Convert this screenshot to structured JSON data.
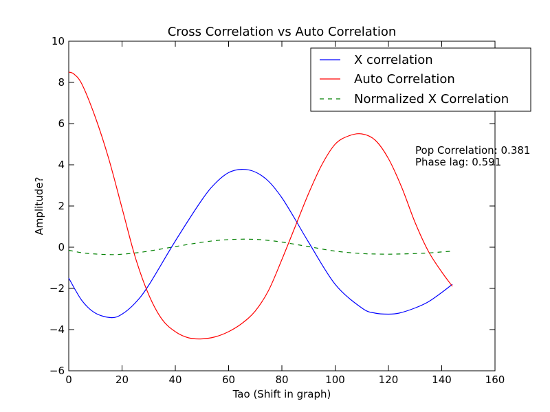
{
  "chart_data": {
    "type": "line",
    "title": "Cross Correlation vs Auto Correlation",
    "xlabel": "Tao (Shift in graph)",
    "ylabel": "Amplitude?",
    "xlim": [
      0,
      160
    ],
    "ylim": [
      -6,
      10
    ],
    "xticks": [
      0,
      20,
      40,
      60,
      80,
      100,
      120,
      140,
      160
    ],
    "yticks": [
      -6,
      -4,
      -2,
      0,
      2,
      4,
      6,
      8,
      10
    ],
    "xtick_labels": [
      "0",
      "20",
      "40",
      "60",
      "80",
      "100",
      "120",
      "140",
      "160"
    ],
    "ytick_labels": [
      "−6",
      "−4",
      "−2",
      "0",
      "2",
      "4",
      "6",
      "8",
      "10"
    ],
    "grid": false,
    "legend_position": "top-right",
    "series": [
      {
        "name": "X correlation",
        "color": "#0000ff",
        "style": "solid",
        "x": [
          0,
          5,
          10,
          16,
          20,
          25,
          30,
          40,
          50,
          55,
          60,
          65,
          70,
          75,
          80,
          85,
          90,
          100,
          110,
          115,
          120,
          124,
          130,
          135,
          140,
          144
        ],
        "y": [
          -1.5,
          -2.6,
          -3.2,
          -3.42,
          -3.25,
          -2.7,
          -1.85,
          0.3,
          2.3,
          3.1,
          3.62,
          3.78,
          3.65,
          3.2,
          2.4,
          1.35,
          0.25,
          -1.8,
          -2.95,
          -3.2,
          -3.25,
          -3.2,
          -2.95,
          -2.65,
          -2.2,
          -1.8
        ]
      },
      {
        "name": "Auto Correlation",
        "color": "#ff0000",
        "style": "solid",
        "x": [
          0,
          2,
          5,
          10,
          15,
          20,
          25,
          30,
          35,
          40,
          45,
          50,
          55,
          60,
          65,
          70,
          75,
          80,
          85,
          90,
          95,
          100,
          105,
          110,
          115,
          120,
          125,
          130,
          135,
          140,
          144
        ],
        "y": [
          8.5,
          8.4,
          7.9,
          6.3,
          4.3,
          1.9,
          -0.5,
          -2.3,
          -3.5,
          -4.1,
          -4.4,
          -4.45,
          -4.35,
          -4.1,
          -3.7,
          -3.1,
          -2.1,
          -0.6,
          1.0,
          2.6,
          4.0,
          5.0,
          5.4,
          5.5,
          5.2,
          4.3,
          2.9,
          1.2,
          -0.2,
          -1.2,
          -1.9
        ]
      },
      {
        "name": "Normalized X Correlation",
        "color": "#008000",
        "style": "dashed",
        "x": [
          0,
          5,
          10,
          16,
          20,
          25,
          30,
          40,
          50,
          55,
          60,
          65,
          70,
          75,
          80,
          85,
          90,
          100,
          110,
          115,
          120,
          124,
          130,
          135,
          140,
          144
        ],
        "y": [
          -0.15,
          -0.27,
          -0.33,
          -0.36,
          -0.34,
          -0.28,
          -0.19,
          0.03,
          0.24,
          0.32,
          0.37,
          0.39,
          0.38,
          0.33,
          0.25,
          0.14,
          0.03,
          -0.19,
          -0.31,
          -0.33,
          -0.34,
          -0.33,
          -0.31,
          -0.28,
          -0.23,
          -0.19
        ]
      }
    ],
    "annotations": [
      "Pop Correlation: 0.381",
      "Phase lag: 0.591"
    ]
  }
}
